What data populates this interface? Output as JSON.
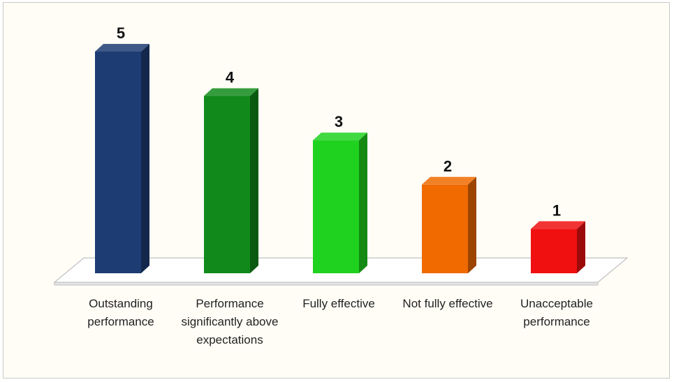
{
  "chart_data": {
    "type": "bar",
    "style": "3d-column",
    "categories": [
      "Outstanding performance",
      "Performance significantly above expectations",
      "Fully effective",
      "Not fully effective",
      "Unacceptable performance"
    ],
    "values": [
      5,
      4,
      3,
      2,
      1
    ],
    "data_labels": [
      "5",
      "4",
      "3",
      "2",
      "1"
    ],
    "colors": [
      "#1d3c73",
      "#118a1b",
      "#1fd21f",
      "#f06a00",
      "#f01010"
    ],
    "ylim": [
      0,
      5
    ],
    "grid": false,
    "legend": "none"
  }
}
